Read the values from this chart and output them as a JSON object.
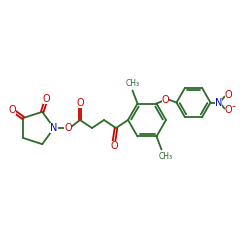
{
  "background": "#ffffff",
  "bond_color": "#2d6b2d",
  "o_color": "#cc0000",
  "n_color": "#0000cc",
  "line_width": 1.3,
  "font_size": 6.0,
  "fig_size": [
    2.5,
    2.5
  ],
  "dpi": 100,
  "xlim": [
    0,
    250
  ],
  "ylim": [
    0,
    250
  ]
}
